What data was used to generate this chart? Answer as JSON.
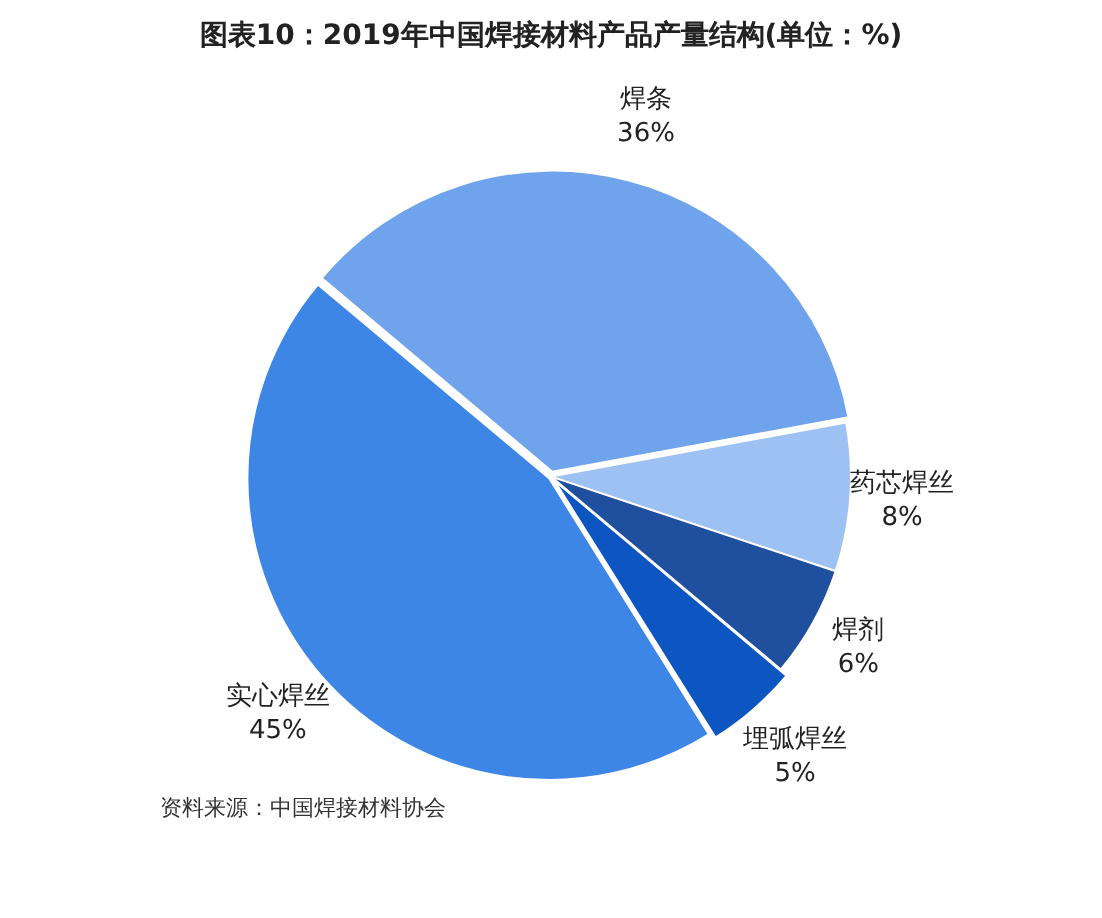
{
  "chart_data": {
    "type": "pie",
    "title": "图表10：2019年中国焊接材料产品产量结构(单位：%)",
    "categories": [
      "焊条",
      "药芯焊丝",
      "焊剂",
      "埋弧焊丝",
      "实心焊丝"
    ],
    "values": [
      36,
      8,
      6,
      5,
      45
    ],
    "value_labels": [
      "36%",
      "8%",
      "6%",
      "5%",
      "45%"
    ],
    "colors": [
      "#6fa3ec",
      "#9dc1f2",
      "#1f4f9f",
      "#0d55c0",
      "#3d86e6"
    ],
    "annotations": [
      "资料来源：中国焊接材料协会"
    ]
  }
}
